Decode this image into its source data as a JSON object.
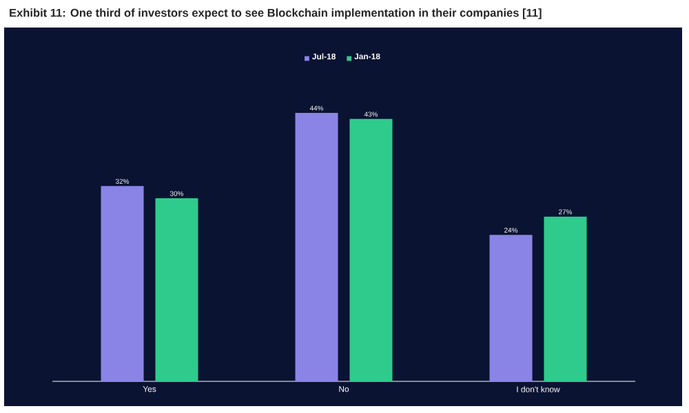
{
  "chart_data": {
    "type": "bar",
    "title": "Exhibit 11: One third of investors expect to see Blockchain implementation in their companies [11]",
    "categories": [
      "Yes",
      "No",
      "I don't know"
    ],
    "series": [
      {
        "name": "Jul-18",
        "color": "#8a84e6",
        "values": [
          32,
          44,
          24
        ],
        "value_labels": [
          "32%",
          "44%",
          "24%"
        ]
      },
      {
        "name": "Jan-18",
        "color": "#2ecb8c",
        "values": [
          30,
          43,
          27
        ],
        "value_labels": [
          "30%",
          "43%",
          "27%"
        ]
      }
    ],
    "legend": "top"
  }
}
